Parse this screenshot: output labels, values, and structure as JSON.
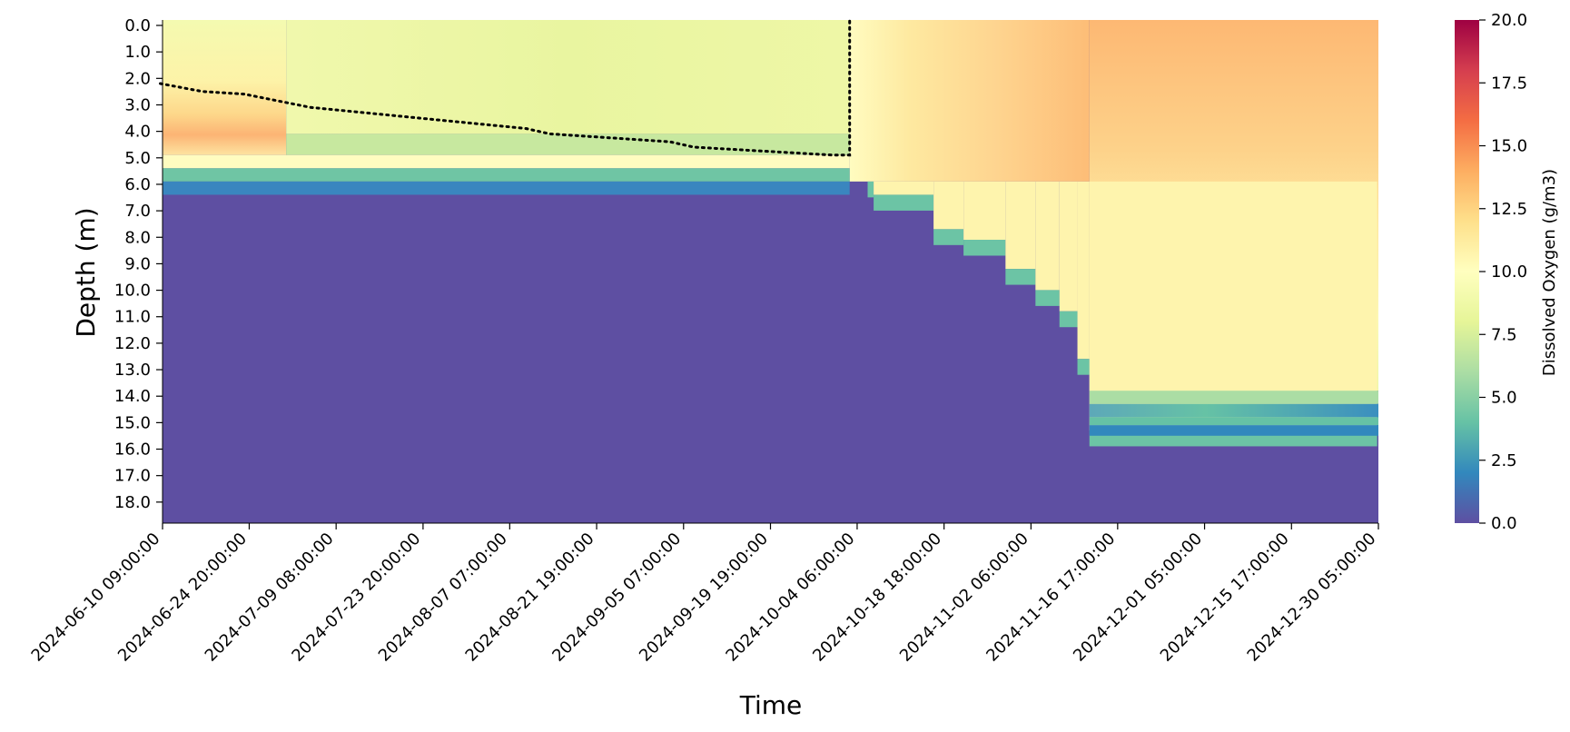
{
  "chart_data": {
    "type": "heatmap",
    "title": "",
    "xlabel": "Time",
    "ylabel": "Depth (m)",
    "colorbar_label": "Dissolved Oxygen  (g/m3)",
    "colormap": "Spectral_r",
    "vmin": 0.0,
    "vmax": 20.0,
    "x_range": [
      "2024-06-10 09:00:00",
      "2024-12-30 05:00:00"
    ],
    "y_range_m": [
      0.0,
      19.0
    ],
    "x_tick_labels": [
      "2024-06-10 09:00:00",
      "2024-06-24 20:00:00",
      "2024-07-09 08:00:00",
      "2024-07-23 20:00:00",
      "2024-08-07 07:00:00",
      "2024-08-21 19:00:00",
      "2024-09-05 07:00:00",
      "2024-09-19 19:00:00",
      "2024-10-04 06:00:00",
      "2024-10-18 18:00:00",
      "2024-11-02 06:00:00",
      "2024-11-16 17:00:00",
      "2024-12-01 05:00:00",
      "2024-12-15 17:00:00",
      "2024-12-30 05:00:00"
    ],
    "y_tick_labels": [
      "0.0",
      "1.0",
      "2.0",
      "3.0",
      "4.0",
      "5.0",
      "6.0",
      "7.0",
      "8.0",
      "9.0",
      "10.0",
      "11.0",
      "12.0",
      "13.0",
      "14.0",
      "15.0",
      "16.0",
      "17.0",
      "18.0"
    ],
    "colorbar_tick_labels": [
      "0.0",
      "2.5",
      "5.0",
      "7.5",
      "10.0",
      "12.5",
      "15.0",
      "17.5",
      "20.0"
    ],
    "anoxic_floor_depth_m": [
      {
        "date": "2024-06-10",
        "depth": 6.1
      },
      {
        "date": "2024-10-06",
        "depth": 6.1
      },
      {
        "date": "2024-10-07",
        "depth": 6.6
      },
      {
        "date": "2024-10-17",
        "depth": 7.9
      },
      {
        "date": "2024-10-22",
        "depth": 8.3
      },
      {
        "date": "2024-10-29",
        "depth": 9.4
      },
      {
        "date": "2024-11-03",
        "depth": 10.2
      },
      {
        "date": "2024-11-07",
        "depth": 11.0
      },
      {
        "date": "2024-11-10",
        "depth": 12.8
      },
      {
        "date": "2024-11-12",
        "depth": 15.5
      },
      {
        "date": "2024-12-30",
        "depth": 15.5
      }
    ],
    "late_profile_dissolved_oxygen": [
      {
        "depth_m": 14.0,
        "value": 7.5
      },
      {
        "depth_m": 14.5,
        "value": 3.0
      },
      {
        "depth_m": 15.0,
        "value": 6.0
      },
      {
        "depth_m": 15.3,
        "value": 2.0
      }
    ],
    "mixed_layer_depth_line": {
      "style": "dotted",
      "points": [
        {
          "date": "2024-06-10",
          "depth": 2.4
        },
        {
          "date": "2024-06-17",
          "depth": 2.7
        },
        {
          "date": "2024-06-24",
          "depth": 2.8
        },
        {
          "date": "2024-07-05",
          "depth": 3.3
        },
        {
          "date": "2024-07-23",
          "depth": 3.7
        },
        {
          "date": "2024-08-10",
          "depth": 4.1
        },
        {
          "date": "2024-08-14",
          "depth": 4.3
        },
        {
          "date": "2024-09-03",
          "depth": 4.6
        },
        {
          "date": "2024-09-07",
          "depth": 4.8
        },
        {
          "date": "2024-09-30",
          "depth": 5.1
        },
        {
          "date": "2024-10-03",
          "depth": 5.1
        },
        {
          "date": "2024-10-03",
          "depth": 0.0
        }
      ]
    }
  }
}
